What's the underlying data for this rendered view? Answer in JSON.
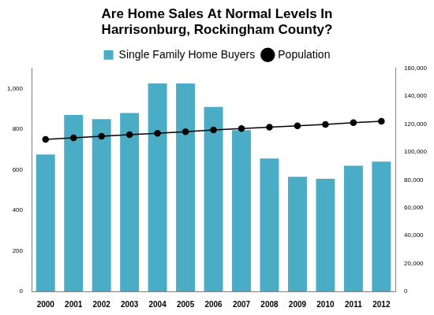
{
  "chart_data": {
    "type": "bar",
    "title": [
      "Are Home Sales At Normal Levels In",
      "Harrisonburg, Rockingham County?"
    ],
    "categories": [
      "2000",
      "2001",
      "2002",
      "2003",
      "2004",
      "2005",
      "2006",
      "2007",
      "2008",
      "2009",
      "2010",
      "2011",
      "2012"
    ],
    "series": [
      {
        "name": "Single Family Home Buyers",
        "type": "bar",
        "color": "#4bacc6",
        "values": [
          675,
          870,
          850,
          880,
          1025,
          1025,
          910,
          795,
          655,
          565,
          555,
          620,
          640
        ]
      },
      {
        "name": "Population",
        "type": "line",
        "color": "#000000",
        "marker": "circle",
        "line_style": "solid",
        "axis": "y2",
        "values": [
          109000,
          110200,
          111300,
          112400,
          113400,
          114600,
          115800,
          116800,
          117800,
          118800,
          119800,
          121000,
          122000
        ]
      }
    ],
    "ylim": [
      0,
      1100
    ],
    "yticks": [
      0,
      200,
      400,
      600,
      800,
      {
        "value": 1000,
        "label": "1,000"
      }
    ],
    "y2lim": [
      0,
      160000
    ],
    "y2ticks": [
      0,
      {
        "value": 20000,
        "label": "20,000"
      },
      {
        "value": 40000,
        "label": "40,000"
      },
      {
        "value": 60000,
        "label": "60,000"
      },
      {
        "value": 80000,
        "label": "80,000"
      },
      {
        "value": 100000,
        "label": "100,000"
      },
      {
        "value": 120000,
        "label": "120,000"
      },
      {
        "value": 140000,
        "label": "140,000"
      },
      {
        "value": 160000,
        "label": "160,000"
      }
    ],
    "grid": false,
    "legend": "top"
  }
}
